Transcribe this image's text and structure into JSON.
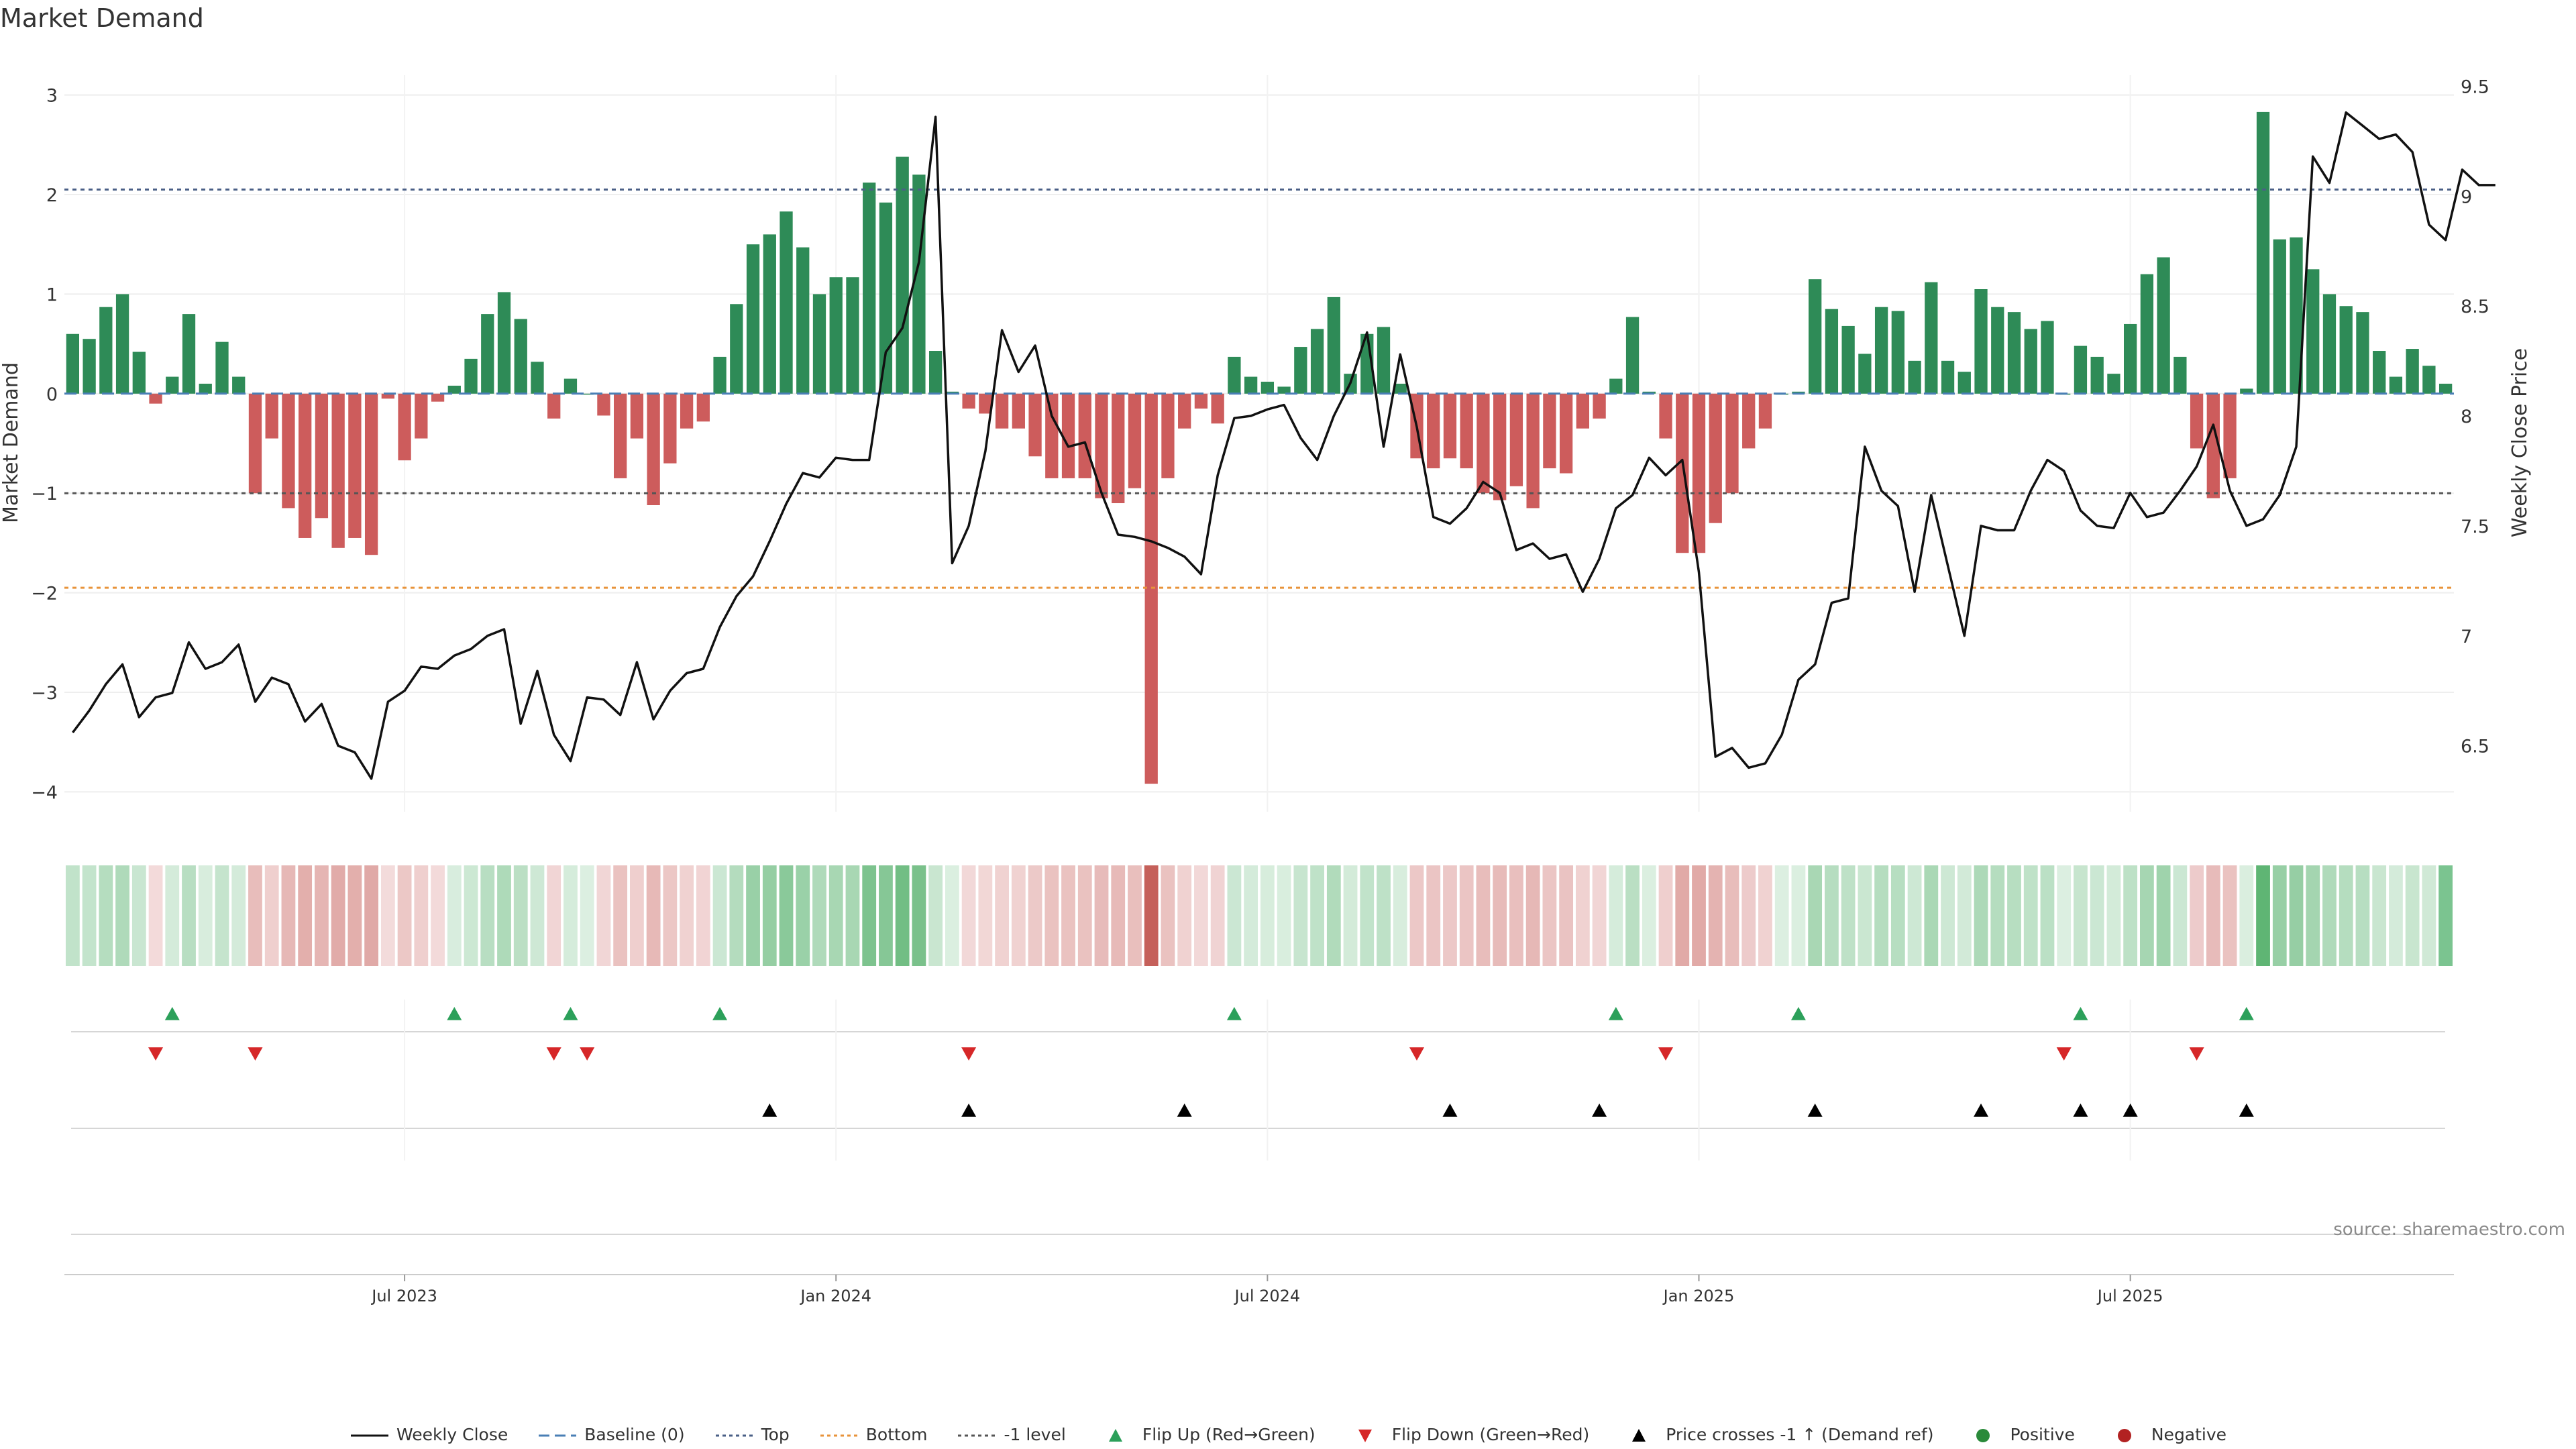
{
  "chart_data": {
    "type": "bar",
    "title": "Market Demand",
    "ylabel": "Market Demand",
    "y2label": "Weekly Close Price",
    "ylim": [
      -4.2,
      3.2
    ],
    "y2lim": [
      6.2,
      9.55
    ],
    "yticks": [
      3,
      2,
      1,
      0,
      -1,
      -2,
      -3,
      -4
    ],
    "ytick_labels": [
      "3",
      "2",
      "1",
      "0",
      "−1",
      "−2",
      "−3",
      "−4"
    ],
    "y2ticks": [
      9.5,
      9,
      8.5,
      8,
      7.5,
      7,
      6.5
    ],
    "y2tick_labels": [
      "9.5",
      "9",
      "8.5",
      "8",
      "7.5",
      "7",
      "6.5"
    ],
    "xticks": [
      {
        "label": "Jul 2023",
        "index": 20
      },
      {
        "label": "Jan 2024",
        "index": 46
      },
      {
        "label": "Jul 2024",
        "index": 72
      },
      {
        "label": "Jan 2025",
        "index": 98
      },
      {
        "label": "Jul 2025",
        "index": 124
      }
    ],
    "reference_lines": {
      "top": 2.05,
      "bottom": -1.95,
      "minus_one": -1.0,
      "baseline": 0
    },
    "demand": [
      0.6,
      0.55,
      0.87,
      1.0,
      0.42,
      -0.1,
      0.17,
      0.8,
      0.1,
      0.52,
      0.17,
      -1.0,
      -0.45,
      -1.15,
      -1.45,
      -1.25,
      -1.55,
      -1.45,
      -1.62,
      -0.05,
      -0.67,
      -0.45,
      -0.08,
      0.08,
      0.35,
      0.8,
      1.02,
      0.75,
      0.32,
      -0.25,
      0.15,
      0.0,
      -0.22,
      -0.85,
      -0.45,
      -1.12,
      -0.7,
      -0.35,
      -0.28,
      0.37,
      0.9,
      1.5,
      1.6,
      1.83,
      1.47,
      1.0,
      1.17,
      1.17,
      2.12,
      1.92,
      2.38,
      2.2,
      0.43,
      0.02,
      -0.15,
      -0.2,
      -0.35,
      -0.35,
      -0.63,
      -0.85,
      -0.85,
      -0.85,
      -1.05,
      -1.1,
      -0.95,
      -3.92,
      -0.85,
      -0.35,
      -0.15,
      -0.3,
      0.37,
      0.17,
      0.12,
      0.07,
      0.47,
      0.65,
      0.97,
      0.2,
      0.6,
      0.67,
      0.1,
      -0.65,
      -0.75,
      -0.65,
      -0.75,
      -1.0,
      -1.07,
      -0.93,
      -1.15,
      -0.75,
      -0.8,
      -0.35,
      -0.25,
      0.15,
      0.77,
      0.02,
      -0.45,
      -1.6,
      -1.6,
      -1.3,
      -1.0,
      -0.55,
      -0.35,
      0.0,
      0.02,
      1.15,
      0.85,
      0.68,
      0.4,
      0.87,
      0.83,
      0.33,
      1.12,
      0.33,
      0.22,
      1.05,
      0.87,
      0.82,
      0.65,
      0.73,
      0.0,
      0.48,
      0.37,
      0.2,
      0.7,
      1.2,
      1.37,
      0.37,
      -0.55,
      -1.05,
      -0.85,
      0.05,
      2.83,
      1.55,
      1.57,
      1.25,
      1.0,
      0.88,
      0.82,
      0.43,
      0.17,
      0.45,
      0.28,
      0.1
    ],
    "weekly_close": [
      6.56,
      6.66,
      6.78,
      6.87,
      6.63,
      6.72,
      6.74,
      6.97,
      6.85,
      6.88,
      6.96,
      6.7,
      6.81,
      6.78,
      6.61,
      6.69,
      6.5,
      6.47,
      6.35,
      6.7,
      6.75,
      6.86,
      6.85,
      6.91,
      6.94,
      7.0,
      7.03,
      6.6,
      6.84,
      6.55,
      6.43,
      6.72,
      6.71,
      6.64,
      6.88,
      6.62,
      6.75,
      6.83,
      6.85,
      7.04,
      7.18,
      7.27,
      7.43,
      7.6,
      7.74,
      7.72,
      7.81,
      7.8,
      7.8,
      8.29,
      8.4,
      8.7,
      9.36,
      7.33,
      7.5,
      7.84,
      8.39,
      8.2,
      8.32,
      8.0,
      7.86,
      7.88,
      7.65,
      7.46,
      7.45,
      7.43,
      7.4,
      7.36,
      7.28,
      7.73,
      7.99,
      8.0,
      8.03,
      8.05,
      7.9,
      7.8,
      8.0,
      8.15,
      8.38,
      7.86,
      8.28,
      7.95,
      7.54,
      7.51,
      7.58,
      7.7,
      7.65,
      7.39,
      7.42,
      7.35,
      7.37,
      7.2,
      7.35,
      7.58,
      7.64,
      7.81,
      7.73,
      7.8,
      7.29,
      6.45,
      6.49,
      6.4,
      6.42,
      6.55,
      6.8,
      6.87,
      7.15,
      7.17,
      7.86,
      7.66,
      7.59,
      7.2,
      7.64,
      7.32,
      7.0,
      7.5,
      7.48,
      7.48,
      7.66,
      7.8,
      7.75,
      7.57,
      7.5,
      7.49,
      7.65,
      7.54,
      7.56,
      7.66,
      7.77,
      7.96,
      7.66,
      7.5,
      7.53,
      7.64,
      7.86,
      9.18,
      9.06,
      9.38,
      9.32,
      9.26,
      9.28,
      9.2,
      8.87,
      8.8,
      9.12,
      9.05,
      9.05
    ],
    "strip_last_color": "#7bc490",
    "flip_up_indices": [
      6,
      23,
      30,
      39,
      70,
      93,
      104,
      121,
      131
    ],
    "flip_down_indices": [
      5,
      11,
      29,
      31,
      54,
      81,
      96,
      120,
      128
    ],
    "price_cross_indices": [
      42,
      54,
      67,
      83,
      92,
      105,
      115,
      121,
      124,
      131
    ],
    "legend": [
      {
        "label": "Weekly Close",
        "kind": "line",
        "color": "#111111"
      },
      {
        "label": "Baseline (0)",
        "kind": "dash",
        "color": "#4a7fb5"
      },
      {
        "label": "Top",
        "kind": "dot",
        "color": "#4a5f86"
      },
      {
        "label": "Bottom",
        "kind": "dot",
        "color": "#e8933a"
      },
      {
        "label": "-1 level",
        "kind": "dot",
        "color": "#555555"
      },
      {
        "label": "Flip Up (Red→Green)",
        "kind": "tri-up",
        "color": "#2ca05a"
      },
      {
        "label": "Flip Down (Green→Red)",
        "kind": "tri-down",
        "color": "#d62728"
      },
      {
        "label": "Price crosses -1 ↑ (Demand ref)",
        "kind": "tri-up",
        "color": "#000000"
      },
      {
        "label": "Positive",
        "kind": "circle",
        "color": "#2a8a3a"
      },
      {
        "label": "Negative",
        "kind": "circle",
        "color": "#b22222"
      }
    ]
  },
  "source": "source: sharemaestro.com",
  "colors": {
    "positive_bar": "#2e8b57",
    "negative_bar": "#cd5c5c",
    "price_line": "#111111",
    "top_line": "#4a5f86",
    "bottom_line": "#e8933a",
    "minus_one_line": "#555555",
    "baseline": "#4a7fb5"
  }
}
